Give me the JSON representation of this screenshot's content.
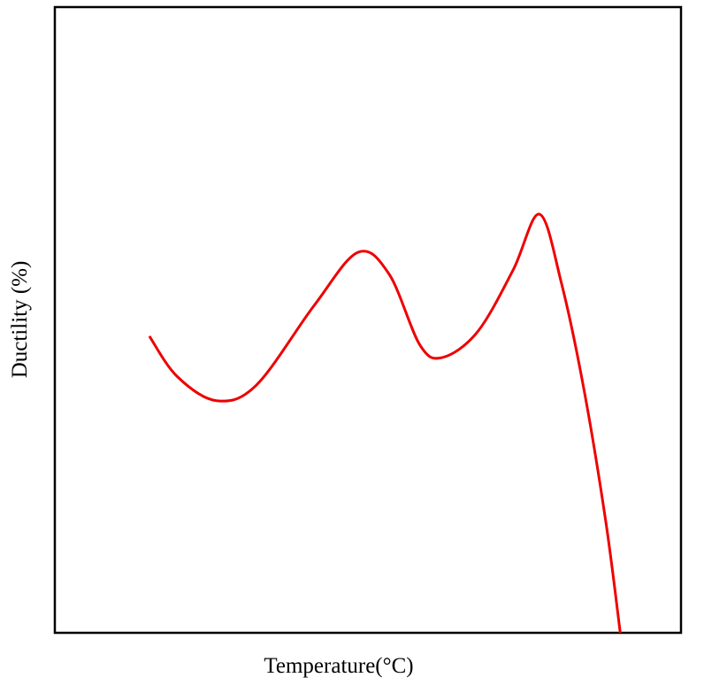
{
  "chart_data": {
    "type": "line",
    "x_label": "Temperature(°C)",
    "y_label": "Ductility (%)",
    "x": [
      15.1,
      19.5,
      25.8,
      32.2,
      41.4,
      48.4,
      53.4,
      58.3,
      61.9,
      67.5,
      73.2,
      77.4,
      80.9,
      84.5,
      88.0,
      90.3
    ],
    "series": [
      {
        "color": "#ee0000",
        "values": [
          47.4,
          41.0,
          37.1,
          39.6,
          52.3,
          60.8,
          57.3,
          46.0,
          44.0,
          48.1,
          58.0,
          66.9,
          55.9,
          38.9,
          17.7,
          0
        ]
      }
    ],
    "xlim": [
      0,
      100
    ],
    "ylim": [
      0,
      100
    ]
  }
}
